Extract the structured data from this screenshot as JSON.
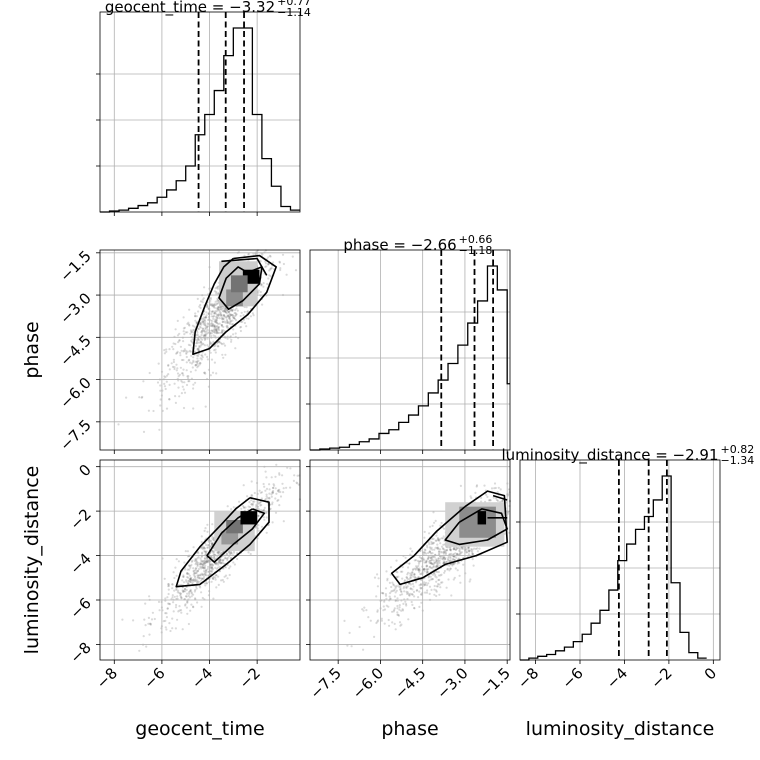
{
  "chart_data": {
    "type": "corner",
    "parameters": [
      {
        "name": "geocent_time",
        "range": [
          -8.6,
          -0.2
        ],
        "ticks": [
          -8,
          -6,
          -4,
          -2
        ],
        "tick_labels": [
          "−8",
          "−6",
          "−4",
          "−2"
        ],
        "title_prefix": "geocent_time = −3.32",
        "title_upper": "+0.77",
        "title_lower": "−1.14",
        "quantiles": [
          -4.46,
          -3.32,
          -2.55
        ],
        "hist_peak": 1.0,
        "hist": {
          "edges": [
            -8.6,
            -8.2,
            -7.8,
            -7.4,
            -7.0,
            -6.6,
            -6.2,
            -5.8,
            -5.4,
            -5.0,
            -4.6,
            -4.2,
            -3.8,
            -3.4,
            -3.0,
            -2.6,
            -2.2,
            -1.8,
            -1.4,
            -1.0,
            -0.6,
            -0.2
          ],
          "counts": [
            0.0,
            0.005,
            0.01,
            0.02,
            0.035,
            0.05,
            0.08,
            0.12,
            0.17,
            0.25,
            0.42,
            0.53,
            0.66,
            0.85,
            1.0,
            1.0,
            0.53,
            0.29,
            0.14,
            0.03,
            0.01
          ]
        }
      },
      {
        "name": "phase",
        "range": [
          -8.5,
          -1.4
        ],
        "ticks": [
          -7.5,
          -6.0,
          -4.5,
          -3.0,
          -1.5
        ],
        "tick_labels": [
          "−7.5",
          "−6.0",
          "−4.5",
          "−3.0",
          "−1.5"
        ],
        "title_prefix": "phase = −2.66",
        "title_upper": "+0.66",
        "title_lower": "−1.18",
        "quantiles": [
          -3.84,
          -2.66,
          -2.0
        ],
        "hist_peak": 1.0,
        "hist": {
          "edges": [
            -8.5,
            -8.15,
            -7.8,
            -7.45,
            -7.1,
            -6.75,
            -6.4,
            -6.05,
            -5.7,
            -5.35,
            -5.0,
            -4.65,
            -4.3,
            -3.95,
            -3.6,
            -3.25,
            -2.9,
            -2.55,
            -2.2,
            -1.85,
            -1.5,
            -1.4
          ],
          "counts": [
            0.0,
            0.005,
            0.01,
            0.015,
            0.03,
            0.045,
            0.06,
            0.09,
            0.11,
            0.15,
            0.19,
            0.24,
            0.31,
            0.38,
            0.47,
            0.57,
            0.69,
            0.81,
            1.0,
            0.87,
            0.36
          ]
        }
      },
      {
        "name": "luminosity_distance",
        "range": [
          -8.7,
          0.3
        ],
        "ticks": [
          -8,
          -6,
          -4,
          -2,
          0
        ],
        "tick_labels": [
          "−8",
          "−6",
          "−4",
          "−2",
          "0"
        ],
        "title_prefix": "luminosity_distance = −2.91",
        "title_upper": "+0.82",
        "title_lower": "−1.34",
        "quantiles": [
          -4.25,
          -2.91,
          -2.09
        ],
        "hist_peak": 1.0,
        "hist": {
          "edges": [
            -8.7,
            -8.3,
            -7.9,
            -7.5,
            -7.1,
            -6.7,
            -6.3,
            -5.9,
            -5.5,
            -5.1,
            -4.7,
            -4.3,
            -3.9,
            -3.5,
            -3.1,
            -2.7,
            -2.3,
            -1.9,
            -1.5,
            -1.1,
            -0.7,
            -0.3
          ],
          "counts": [
            0.0,
            0.01,
            0.02,
            0.03,
            0.05,
            0.07,
            0.1,
            0.14,
            0.2,
            0.27,
            0.38,
            0.54,
            0.63,
            0.71,
            0.78,
            0.87,
            1.0,
            0.42,
            0.15,
            0.04,
            0.01
          ]
        }
      }
    ],
    "pairs": [
      {
        "x": 0,
        "y": 1,
        "density_blocks": [
          {
            "x": [
              -3.1,
              -2.4
            ],
            "y": [
              -2.9,
              -2.3
            ],
            "shade": 0.55
          },
          {
            "x": [
              -2.6,
              -1.9
            ],
            "y": [
              -2.6,
              -2.1
            ],
            "shade": 1.0
          },
          {
            "x": [
              -3.3,
              -2.6
            ],
            "y": [
              -3.4,
              -2.8
            ],
            "shade": 0.45
          },
          {
            "x": [
              -3.6,
              -2.0
            ],
            "y": [
              -3.4,
              -1.8
            ],
            "shade": 0.2
          }
        ],
        "contours": [
          [
            [
              -2.4,
              -2.2
            ],
            [
              -1.8,
              -2.0
            ],
            [
              -1.9,
              -2.6
            ],
            [
              -2.6,
              -3.2
            ],
            [
              -3.2,
              -3.5
            ],
            [
              -3.6,
              -3.1
            ],
            [
              -3.3,
              -2.4
            ],
            [
              -2.8,
              -2.0
            ],
            [
              -2.4,
              -2.2
            ]
          ],
          [
            [
              -3.0,
              -1.7
            ],
            [
              -1.9,
              -1.6
            ],
            [
              -1.2,
              -2.0
            ],
            [
              -1.6,
              -2.9
            ],
            [
              -2.4,
              -3.7
            ],
            [
              -3.3,
              -4.3
            ],
            [
              -4.0,
              -4.9
            ],
            [
              -4.7,
              -5.1
            ],
            [
              -4.6,
              -4.3
            ],
            [
              -4.2,
              -3.4
            ],
            [
              -3.8,
              -2.6
            ],
            [
              -3.4,
              -2.0
            ],
            [
              -3.0,
              -1.7
            ]
          ],
          [
            [
              -3.5,
              -1.8
            ],
            [
              -2.0,
              -1.7
            ],
            [
              -1.6,
              -2.3
            ]
          ]
        ],
        "scatter_center": [
          -3.5,
          -3.7
        ],
        "scatter_spread": [
          1.15,
          1.25
        ],
        "scatter_corr": 0.85
      },
      {
        "x": 0,
        "y": 2,
        "density_blocks": [
          {
            "x": [
              -2.7,
              -2.0
            ],
            "y": [
              -2.6,
              -2.0
            ],
            "shade": 1.0
          },
          {
            "x": [
              -3.3,
              -2.6
            ],
            "y": [
              -3.0,
              -2.4
            ],
            "shade": 0.55
          },
          {
            "x": [
              -3.5,
              -2.8
            ],
            "y": [
              -3.5,
              -2.9
            ],
            "shade": 0.4
          },
          {
            "x": [
              -3.8,
              -2.1
            ],
            "y": [
              -3.8,
              -2.0
            ],
            "shade": 0.18
          }
        ],
        "contours": [
          [
            [
              -2.2,
              -1.9
            ],
            [
              -1.7,
              -2.1
            ],
            [
              -2.2,
              -2.8
            ],
            [
              -3.0,
              -3.5
            ],
            [
              -3.8,
              -4.3
            ],
            [
              -4.1,
              -4.0
            ],
            [
              -3.5,
              -3.0
            ],
            [
              -2.8,
              -2.3
            ],
            [
              -2.2,
              -1.9
            ]
          ],
          [
            [
              -2.3,
              -1.4
            ],
            [
              -1.5,
              -1.6
            ],
            [
              -1.5,
              -2.5
            ],
            [
              -2.3,
              -3.5
            ],
            [
              -3.3,
              -4.4
            ],
            [
              -4.4,
              -5.3
            ],
            [
              -5.4,
              -5.4
            ],
            [
              -5.2,
              -4.7
            ],
            [
              -4.4,
              -3.6
            ],
            [
              -3.5,
              -2.6
            ],
            [
              -2.9,
              -1.9
            ],
            [
              -2.3,
              -1.4
            ]
          ]
        ],
        "scatter_center": [
          -3.6,
          -3.8
        ],
        "scatter_spread": [
          1.2,
          1.45
        ],
        "scatter_corr": 0.9
      },
      {
        "x": 1,
        "y": 2,
        "density_blocks": [
          {
            "x": [
              -2.55,
              -2.25
            ],
            "y": [
              -2.6,
              -2.0
            ],
            "shade": 1.0
          },
          {
            "x": [
              -3.2,
              -1.9
            ],
            "y": [
              -3.2,
              -1.8
            ],
            "shade": 0.45
          },
          {
            "x": [
              -3.7,
              -1.6
            ],
            "y": [
              -3.6,
              -1.6
            ],
            "shade": 0.18
          }
        ],
        "contours": [
          [
            [
              -3.2,
              -2.5
            ],
            [
              -2.4,
              -1.9
            ],
            [
              -1.7,
              -2.1
            ],
            [
              -1.5,
              -2.8
            ],
            [
              -2.2,
              -3.3
            ],
            [
              -3.2,
              -3.5
            ],
            [
              -3.7,
              -3.3
            ],
            [
              -3.2,
              -2.5
            ]
          ],
          [
            [
              -3.0,
              -1.8
            ],
            [
              -2.2,
              -1.1
            ],
            [
              -1.6,
              -1.3
            ],
            [
              -1.5,
              -3.4
            ],
            [
              -2.6,
              -4.0
            ],
            [
              -3.7,
              -4.4
            ],
            [
              -4.5,
              -5.0
            ],
            [
              -5.3,
              -5.3
            ],
            [
              -5.6,
              -4.8
            ],
            [
              -4.8,
              -4.0
            ],
            [
              -4.0,
              -2.9
            ],
            [
              -3.0,
              -1.8
            ]
          ],
          [
            [
              -2.0,
              -1.3
            ],
            [
              -1.5,
              -1.5
            ]
          ],
          [
            [
              -2.2,
              -2.3
            ],
            [
              -1.5,
              -2.3
            ]
          ]
        ],
        "scatter_center": [
          -3.6,
          -3.8
        ],
        "scatter_spread": [
          1.25,
          1.45
        ],
        "scatter_corr": 0.88
      }
    ]
  }
}
